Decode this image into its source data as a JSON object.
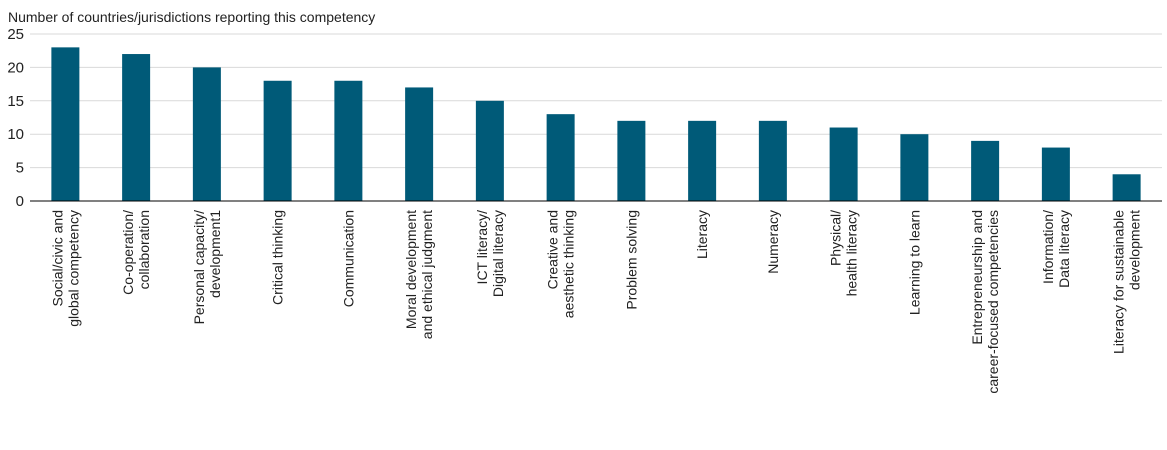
{
  "chart_data": {
    "type": "bar",
    "ylabel": "Number of countries/jurisdictions reporting this competency",
    "categories": [
      [
        "Social/civic and",
        "global competency"
      ],
      [
        "Co-operation/",
        "collaboration"
      ],
      [
        "Personal capacity/",
        "development1"
      ],
      [
        "Critical thinking"
      ],
      [
        "Communication"
      ],
      [
        "Moral development",
        "and ethical judgment"
      ],
      [
        "ICT literacy/",
        "Digital literacy"
      ],
      [
        "Creative and",
        "aesthetic thinking"
      ],
      [
        "Problem solving"
      ],
      [
        "Literacy"
      ],
      [
        "Numeracy"
      ],
      [
        "Physical/",
        "health literacy"
      ],
      [
        "Learning to learn"
      ],
      [
        "Entrepreneurship and",
        "career-focused competencies"
      ],
      [
        "Information/",
        "Data literacy"
      ],
      [
        "Literacy for sustainable",
        "development"
      ]
    ],
    "values": [
      23,
      22,
      20,
      18,
      18,
      17,
      15,
      13,
      12,
      12,
      12,
      11,
      10,
      9,
      8,
      4
    ],
    "ylim": [
      0,
      25
    ],
    "yticks": [
      "0",
      "5",
      "10",
      "15",
      "20",
      "25"
    ],
    "grid": true,
    "bar_color": "#005a78",
    "grid_color": "#d9d9d9",
    "axis_color": "#000000"
  }
}
